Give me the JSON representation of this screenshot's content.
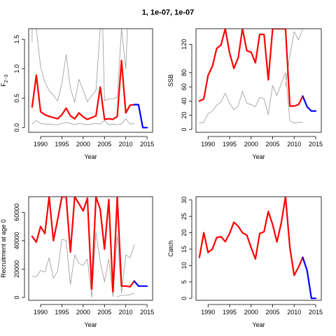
{
  "figure": {
    "title": "1, 1e-07, 1e-07"
  },
  "colors": {
    "main": "#ff0000",
    "projection": "#0000ff",
    "iterations": "#999999",
    "axis": "#000000"
  },
  "chart_data": [
    {
      "type": "line",
      "xlabel": "Year",
      "ylabel": "F2-3",
      "ylabel_main": "F",
      "ylabel_sub": "2−3",
      "xlim": [
        1987.2,
        2016.3
      ],
      "ylim": [
        -0.08,
        1.68
      ],
      "xticks": [
        1990,
        1995,
        2000,
        2005,
        2010,
        2015
      ],
      "yticks": [
        0.0,
        0.5,
        1.0,
        1.5
      ],
      "ytick_labels": [
        "0.0",
        "0.5",
        "1.0",
        "1.5"
      ],
      "series": [
        {
          "role": "grey",
          "x": [
            1988,
            1988
          ],
          "y": [
            1.68,
            1.46
          ]
        },
        {
          "role": "grey",
          "x": [
            1988,
            1989,
            1990,
            1991,
            1992,
            1993,
            1994,
            1995,
            1996,
            1997,
            1998,
            1999,
            2000,
            2001,
            2002,
            2003,
            2004,
            2005,
            2006,
            2007,
            2008,
            2009,
            2010,
            2011,
            2012
          ],
          "y": [
            0.06,
            0.12,
            0.07,
            0.06,
            0.06,
            0.05,
            0.05,
            0.07,
            0.09,
            0.07,
            0.05,
            0.07,
            0.06,
            0.05,
            0.06,
            0.07,
            0.06,
            0.12,
            0.05,
            0.06,
            0.05,
            0.06,
            0.15,
            0.06,
            0.07
          ]
        },
        {
          "role": "grey",
          "x": [
            1989,
            1990,
            1991,
            1992,
            1993,
            1994,
            1995,
            1996,
            1997,
            1998,
            1999,
            2000,
            2001,
            2002,
            2003,
            2004,
            2004.4,
            2004.6,
            2005,
            2006,
            2007,
            2008,
            2009,
            2010,
            2010.4
          ],
          "y": [
            1.68,
            1.03,
            0.77,
            0.63,
            0.55,
            0.45,
            0.75,
            1.24,
            0.67,
            0.43,
            0.82,
            0.63,
            0.44,
            0.54,
            0.63,
            1.68,
            1.68,
            1.68,
            0.46,
            0.49,
            0.49,
            0.51,
            1.68,
            1.0,
            1.68
          ]
        },
        {
          "role": "main",
          "x": [
            1988,
            1989,
            1990,
            1991,
            1992,
            1993,
            1994,
            1995,
            1996,
            1997,
            1998,
            1999,
            2000,
            2001,
            2002,
            2003,
            2004,
            2005,
            2006,
            2007,
            2008,
            2009,
            2010,
            2011,
            2012
          ],
          "y": [
            0.35,
            0.89,
            0.27,
            0.22,
            0.19,
            0.17,
            0.15,
            0.22,
            0.33,
            0.2,
            0.15,
            0.25,
            0.18,
            0.14,
            0.17,
            0.2,
            0.69,
            0.14,
            0.15,
            0.14,
            0.19,
            1.14,
            0.25,
            0.38,
            0.39
          ]
        },
        {
          "role": "projection",
          "x": [
            2012,
            2013,
            2014,
            2015
          ],
          "y": [
            0.39,
            0.39,
            0.0,
            0.0
          ]
        }
      ]
    },
    {
      "type": "line",
      "xlabel": "Year",
      "ylabel": "SSB",
      "xlim": [
        1987.2,
        2016.3
      ],
      "ylim": [
        -4,
        142
      ],
      "xticks": [
        1990,
        1995,
        2000,
        2005,
        2010,
        2015
      ],
      "yticks": [
        0,
        20,
        40,
        60,
        80,
        120
      ],
      "ytick_labels": [
        "0",
        "20",
        "40",
        "60",
        "80",
        "120"
      ],
      "series": [
        {
          "role": "grey",
          "x": [
            1988,
            1989,
            1990,
            1991,
            1992,
            1993,
            1994,
            1995,
            1996,
            1997,
            1998,
            1999,
            2000,
            2001,
            2002,
            2003,
            2004,
            2005,
            2006,
            2007,
            2008,
            2009,
            2010,
            2011,
            2012
          ],
          "y": [
            9,
            10,
            22,
            26,
            34,
            39,
            51,
            37,
            28,
            33,
            54,
            37,
            35,
            32,
            45,
            43,
            21,
            62,
            48,
            65,
            80,
            12,
            9,
            10,
            10
          ]
        },
        {
          "role": "grey",
          "x": [
            2008,
            2009,
            2010,
            2011,
            2012
          ],
          "y": [
            62,
            104,
            138,
            126,
            142
          ]
        },
        {
          "role": "main",
          "x": [
            1988,
            1989,
            1990,
            1991,
            1992,
            1993,
            1994,
            1995,
            1996,
            1997,
            1998,
            1999,
            2000,
            2001,
            2002,
            2003,
            2004,
            2005,
            2006,
            2007,
            2008,
            2009,
            2010,
            2011,
            2012
          ],
          "y": [
            40,
            43,
            76,
            89,
            114,
            119,
            142,
            108,
            86,
            101,
            142,
            111,
            109,
            94,
            134,
            134,
            70,
            142,
            142,
            142,
            142,
            33,
            33,
            35,
            47
          ]
        },
        {
          "role": "projection",
          "x": [
            2012,
            2013,
            2014,
            2015
          ],
          "y": [
            47,
            32,
            26,
            26
          ]
        }
      ]
    },
    {
      "type": "line",
      "xlabel": "Year",
      "ylabel": "Recruitment at age 0",
      "xlim": [
        1987.2,
        2016.3
      ],
      "ylim": [
        -2000,
        71000
      ],
      "xticks": [
        1990,
        1995,
        2000,
        2005,
        2010,
        2015
      ],
      "yticks": [
        0,
        20000,
        40000,
        60000
      ],
      "ytick_labels": [
        "0",
        "20000",
        "40000",
        "60000"
      ],
      "series": [
        {
          "role": "grey",
          "x": [
            1988,
            1989,
            1990,
            1991,
            1992,
            1993,
            1994,
            1995,
            1996,
            1997,
            1998,
            1999,
            2000,
            2001,
            2002,
            2003,
            2004,
            2005,
            2006,
            2007,
            2008,
            2009,
            2010,
            2011,
            2012
          ],
          "y": [
            15000,
            14500,
            19000,
            18000,
            28000,
            13500,
            18500,
            41000,
            40000,
            9000,
            30000,
            24000,
            22500,
            27000,
            0,
            46000,
            25000,
            11000,
            27000,
            500,
            44000,
            3000,
            30000,
            28000,
            37000
          ]
        },
        {
          "role": "grey",
          "x": [
            2008,
            2009,
            2010,
            2011,
            2012
          ],
          "y": [
            500,
            1500,
            1500,
            2000,
            3000
          ]
        },
        {
          "role": "main",
          "x": [
            1988,
            1989,
            1990,
            1991,
            1992,
            1993,
            1994,
            1995,
            1996,
            1997,
            1998,
            1999,
            2000,
            2001,
            2002,
            2003,
            2004,
            2005,
            2006,
            2007,
            2008,
            2009,
            2010,
            2011,
            2012
          ],
          "y": [
            43000,
            39000,
            50000,
            45000,
            71000,
            40000,
            55000,
            71000,
            71000,
            32000,
            71000,
            66000,
            61000,
            70000,
            6000,
            71000,
            62000,
            34000,
            69000,
            4000,
            71000,
            8000,
            8000,
            7500,
            11500
          ]
        },
        {
          "role": "projection",
          "x": [
            2012,
            2013,
            2014,
            2015
          ],
          "y": [
            11500,
            8000,
            8000,
            8000
          ]
        }
      ]
    },
    {
      "type": "line",
      "xlabel": "Year",
      "ylabel": "Catch",
      "xlim": [
        1987.2,
        2016.3
      ],
      "ylim": [
        -0.6,
        31
      ],
      "xticks": [
        1990,
        1995,
        2000,
        2005,
        2010,
        2015
      ],
      "yticks": [
        0,
        5,
        10,
        15,
        20,
        25,
        30
      ],
      "ytick_labels": [
        "0",
        "5",
        "10",
        "15",
        "20",
        "25",
        "30"
      ],
      "series": [
        {
          "role": "main",
          "x": [
            1988,
            1989,
            1990,
            1991,
            1992,
            1993,
            1994,
            1995,
            1996,
            1997,
            1998,
            1999,
            2000,
            2001,
            2002,
            2003,
            2004,
            2005,
            2006,
            2007,
            2008,
            2009,
            2010,
            2011,
            2012
          ],
          "y": [
            12.5,
            20,
            14,
            15,
            18.5,
            18.8,
            17.3,
            19.8,
            23.2,
            22,
            20,
            19.3,
            15.5,
            12,
            19.8,
            20.3,
            26.5,
            22.5,
            17.2,
            23,
            31,
            15.5,
            7,
            9.5,
            12.5
          ]
        },
        {
          "role": "projection",
          "x": [
            2012,
            2013,
            2014,
            2015
          ],
          "y": [
            12.5,
            8.5,
            0,
            0
          ]
        }
      ]
    }
  ]
}
